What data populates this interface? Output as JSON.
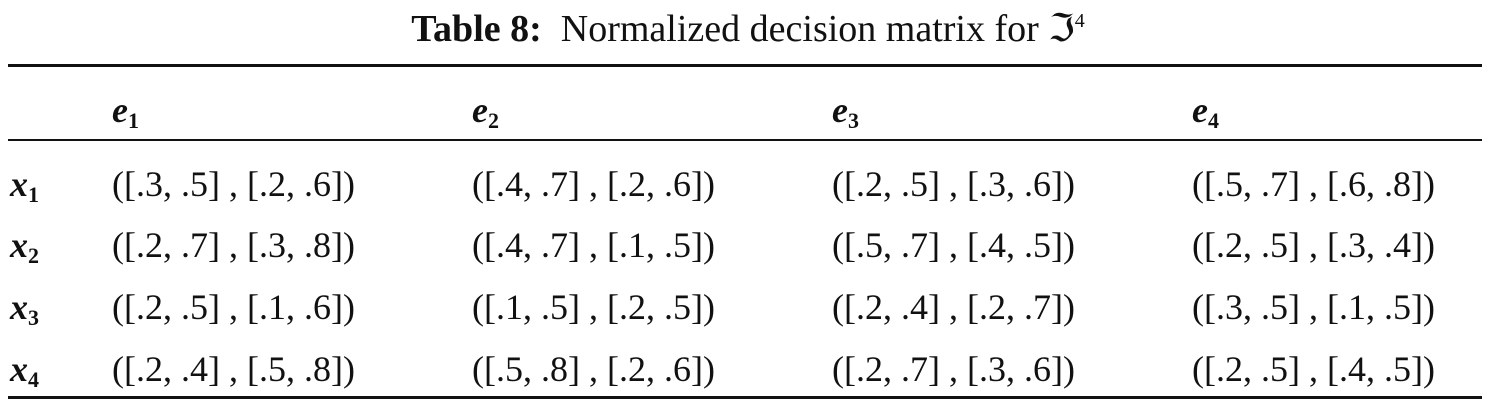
{
  "caption": {
    "label": "Table 8:",
    "text": "Normalized decision matrix for ℑ",
    "superscript": "4"
  },
  "table": {
    "columns": [
      {
        "symbol": "e",
        "index": "1"
      },
      {
        "symbol": "e",
        "index": "2"
      },
      {
        "symbol": "e",
        "index": "3"
      },
      {
        "symbol": "e",
        "index": "4"
      }
    ],
    "rows": [
      {
        "symbol": "x",
        "index": "1",
        "cells": [
          "([.3, .5] , [.2, .6])",
          "([.4, .7] , [.2, .6])",
          "([.2, .5] , [.3, .6])",
          "([.5, .7] , [.6, .8])"
        ]
      },
      {
        "symbol": "x",
        "index": "2",
        "cells": [
          "([.2, .7] , [.3, .8])",
          "([.4, .7] , [.1, .5])",
          "([.5, .7] , [.4, .5])",
          "([.2, .5] , [.3, .4])"
        ]
      },
      {
        "symbol": "x",
        "index": "3",
        "cells": [
          "([.2, .5] , [.1, .6])",
          "([.1, .5] , [.2, .5])",
          "([.2, .4] , [.2, .7])",
          "([.3, .5] , [.1, .5])"
        ]
      },
      {
        "symbol": "x",
        "index": "4",
        "cells": [
          "([.2, .4] , [.5, .8])",
          "([.5, .8] , [.2, .6])",
          "([.2, .7] , [.3, .6])",
          "([.2, .5] , [.4, .5])"
        ]
      }
    ]
  }
}
